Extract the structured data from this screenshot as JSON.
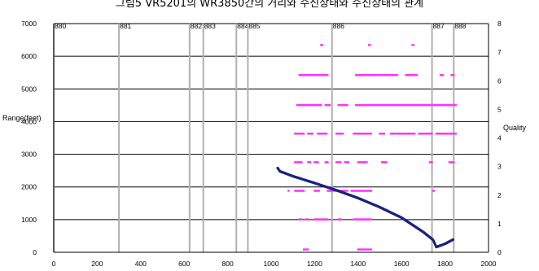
{
  "chart_data": {
    "type": "scatter",
    "title": "그림5 VR5201의 WR3850간의 거리와 수신상태와 수신상태의 관계",
    "xlabel": "",
    "ylabel_left": "Range(feet)",
    "ylabel_right": "Quality",
    "xlim": [
      0,
      2000
    ],
    "ylim_left": [
      0,
      7000
    ],
    "ylim_right": [
      0,
      8
    ],
    "x_ticks": [
      0,
      200,
      400,
      600,
      800,
      1000,
      1200,
      1400,
      1600,
      1800,
      2000
    ],
    "y_left_ticks": [
      0,
      1000,
      2000,
      3000,
      4000,
      5000,
      6000,
      7000
    ],
    "y_right_ticks": [
      0,
      1,
      2,
      3,
      4,
      5,
      6,
      7,
      8
    ],
    "grid": "horizontal gridlines",
    "colors": {
      "range": "#1a237e",
      "quality": "#ff33ff",
      "marker_lines": "#b0b0b0",
      "grid": "#000000"
    },
    "markers": [
      {
        "label": "880",
        "x": 0
      },
      {
        "label": "881",
        "x": 300
      },
      {
        "label": "882",
        "x": 625
      },
      {
        "label": "883",
        "x": 688
      },
      {
        "label": "884",
        "x": 840
      },
      {
        "label": "885",
        "x": 893
      },
      {
        "label": "886",
        "x": 1280
      },
      {
        "label": "887",
        "x": 1740
      },
      {
        "label": "888",
        "x": 1840
      }
    ],
    "series": [
      {
        "axis": "left",
        "type": "line-scatter",
        "points": [
          [
            1030,
            2580
          ],
          [
            1040,
            2480
          ],
          [
            1100,
            2330
          ],
          [
            1200,
            2120
          ],
          [
            1300,
            1900
          ],
          [
            1400,
            1660
          ],
          [
            1500,
            1380
          ],
          [
            1600,
            1060
          ],
          [
            1700,
            620
          ],
          [
            1745,
            380
          ],
          [
            1760,
            160
          ],
          [
            1800,
            260
          ],
          [
            1840,
            400
          ]
        ]
      },
      {
        "axis": "right",
        "type": "scatter",
        "segments": [
          {
            "q": 7.25,
            "xs": [
              [
                1230,
                1236
              ],
              [
                1450,
                1456
              ],
              [
                1650,
                1656
              ]
            ]
          },
          {
            "q": 6.2,
            "xs": [
              [
                1130,
                1260
              ],
              [
                1390,
                1580
              ],
              [
                1620,
                1670
              ],
              [
                1780,
                1790
              ],
              [
                1830,
                1840
              ]
            ]
          },
          {
            "q": 5.15,
            "xs": [
              [
                1120,
                1230
              ],
              [
                1250,
                1270
              ],
              [
                1310,
                1350
              ],
              [
                1390,
                1850
              ]
            ]
          },
          {
            "q": 4.15,
            "xs": [
              [
                1110,
                1150
              ],
              [
                1170,
                1190
              ],
              [
                1215,
                1255
              ],
              [
                1300,
                1330
              ],
              [
                1380,
                1460
              ],
              [
                1500,
                1520
              ],
              [
                1550,
                1660
              ],
              [
                1680,
                1740
              ],
              [
                1760,
                1850
              ]
            ]
          },
          {
            "q": 3.15,
            "xs": [
              [
                1110,
                1140
              ],
              [
                1170,
                1180
              ],
              [
                1200,
                1215
              ],
              [
                1250,
                1260
              ],
              [
                1300,
                1320
              ],
              [
                1340,
                1355
              ],
              [
                1400,
                1440
              ],
              [
                1510,
                1530
              ],
              [
                1730,
                1740
              ],
              [
                1820,
                1840
              ]
            ]
          },
          {
            "q": 2.15,
            "xs": [
              [
                1080,
                1084
              ],
              [
                1110,
                1150
              ],
              [
                1200,
                1220
              ],
              [
                1260,
                1350
              ],
              [
                1370,
                1460
              ],
              [
                1745,
                1750
              ]
            ]
          },
          {
            "q": 1.15,
            "xs": [
              [
                1130,
                1140
              ],
              [
                1160,
                1170
              ],
              [
                1200,
                1260
              ],
              [
                1310,
                1320
              ],
              [
                1380,
                1460
              ]
            ]
          },
          {
            "q": 0.1,
            "xs": [
              [
                1150,
                1170
              ],
              [
                1400,
                1460
              ]
            ]
          }
        ]
      }
    ]
  }
}
